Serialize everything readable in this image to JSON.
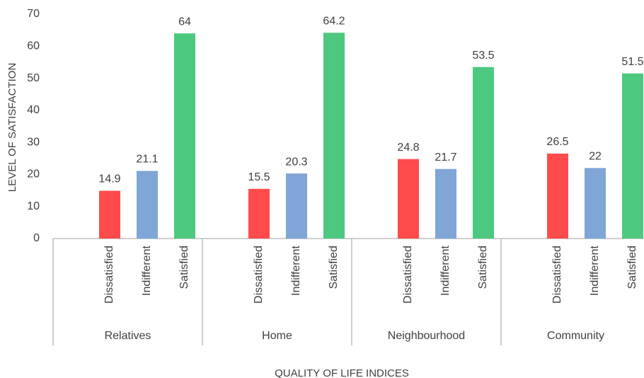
{
  "chart_data": {
    "type": "bar",
    "x_label": "QUALITY OF LIFE INDICES",
    "y_label": "LEVEL OF SATISFACTION",
    "categories": [
      "Relatives",
      "Home",
      "Neighbourhood",
      "Community"
    ],
    "series": [
      {
        "name": "Dissatisfied",
        "color": "#ff4b4b",
        "values": [
          14.9,
          15.5,
          24.8,
          26.5
        ]
      },
      {
        "name": "Indifferent",
        "color": "#7fa6d6",
        "values": [
          21.1,
          20.3,
          21.7,
          22
        ]
      },
      {
        "name": "Satisfied",
        "color": "#4cc97f",
        "values": [
          64,
          64.2,
          53.5,
          51.5
        ]
      }
    ],
    "ylim": [
      0,
      70
    ],
    "yticks": [
      0,
      10,
      20,
      30,
      40,
      50,
      60,
      70
    ],
    "grid": false
  }
}
